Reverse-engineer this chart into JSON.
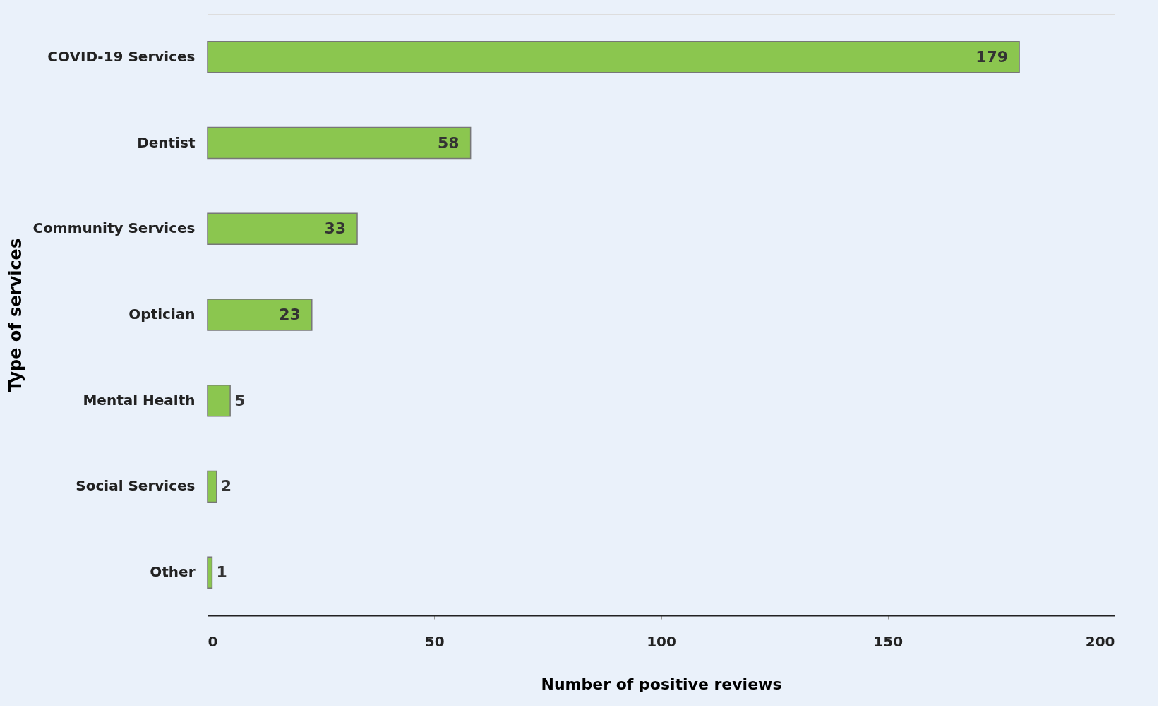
{
  "chart_data": {
    "type": "bar",
    "orientation": "horizontal",
    "xlabel": "Number of positive reviews",
    "ylabel": "Type of services",
    "categories": [
      "COVID-19 Services",
      "Dentist",
      "Community Services",
      "Optician",
      "Mental Health",
      "Social Services",
      "Other"
    ],
    "values": [
      179,
      58,
      33,
      23,
      5,
      2,
      1
    ],
    "color": "#8bc64f",
    "xlim": [
      0,
      200
    ],
    "xticks": [
      0,
      50,
      100,
      150,
      200
    ],
    "grid": false,
    "data_labels": true
  }
}
